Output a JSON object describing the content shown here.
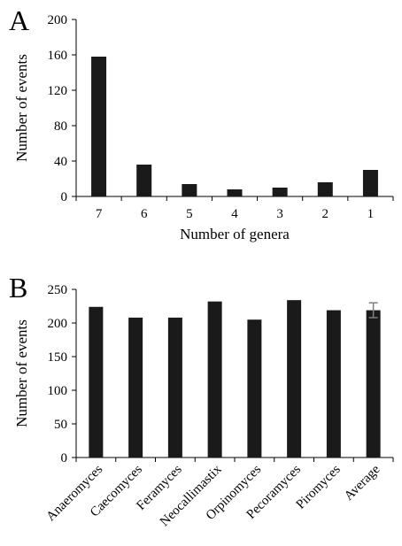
{
  "chart_data": [
    {
      "panel": "A",
      "type": "bar",
      "categories": [
        "7",
        "6",
        "5",
        "4",
        "3",
        "2",
        "1"
      ],
      "values": [
        158,
        36,
        14,
        8,
        10,
        16,
        30
      ],
      "xlabel": "Number of genera",
      "ylabel": "Number of events",
      "ylim": [
        0,
        200
      ],
      "yticks": [
        0,
        40,
        80,
        120,
        160,
        200
      ],
      "grid": false,
      "color": "#1a1a1a"
    },
    {
      "panel": "B",
      "type": "bar",
      "categories": [
        "Anaeromyces",
        "Caecomyces",
        "Feramyces",
        "Neocallimastix",
        "Orpinomyces",
        "Pecoramyces",
        "Piromyces",
        "Average"
      ],
      "values": [
        224,
        208,
        208,
        232,
        205,
        234,
        219,
        219
      ],
      "error": [
        null,
        null,
        null,
        null,
        null,
        null,
        null,
        11
      ],
      "xlabel": "",
      "ylabel": "Number of events",
      "ylim": [
        0,
        250
      ],
      "yticks": [
        0,
        50,
        100,
        150,
        200,
        250
      ],
      "grid": false,
      "color": "#1a1a1a",
      "error_color": "#7f7f7f"
    }
  ]
}
